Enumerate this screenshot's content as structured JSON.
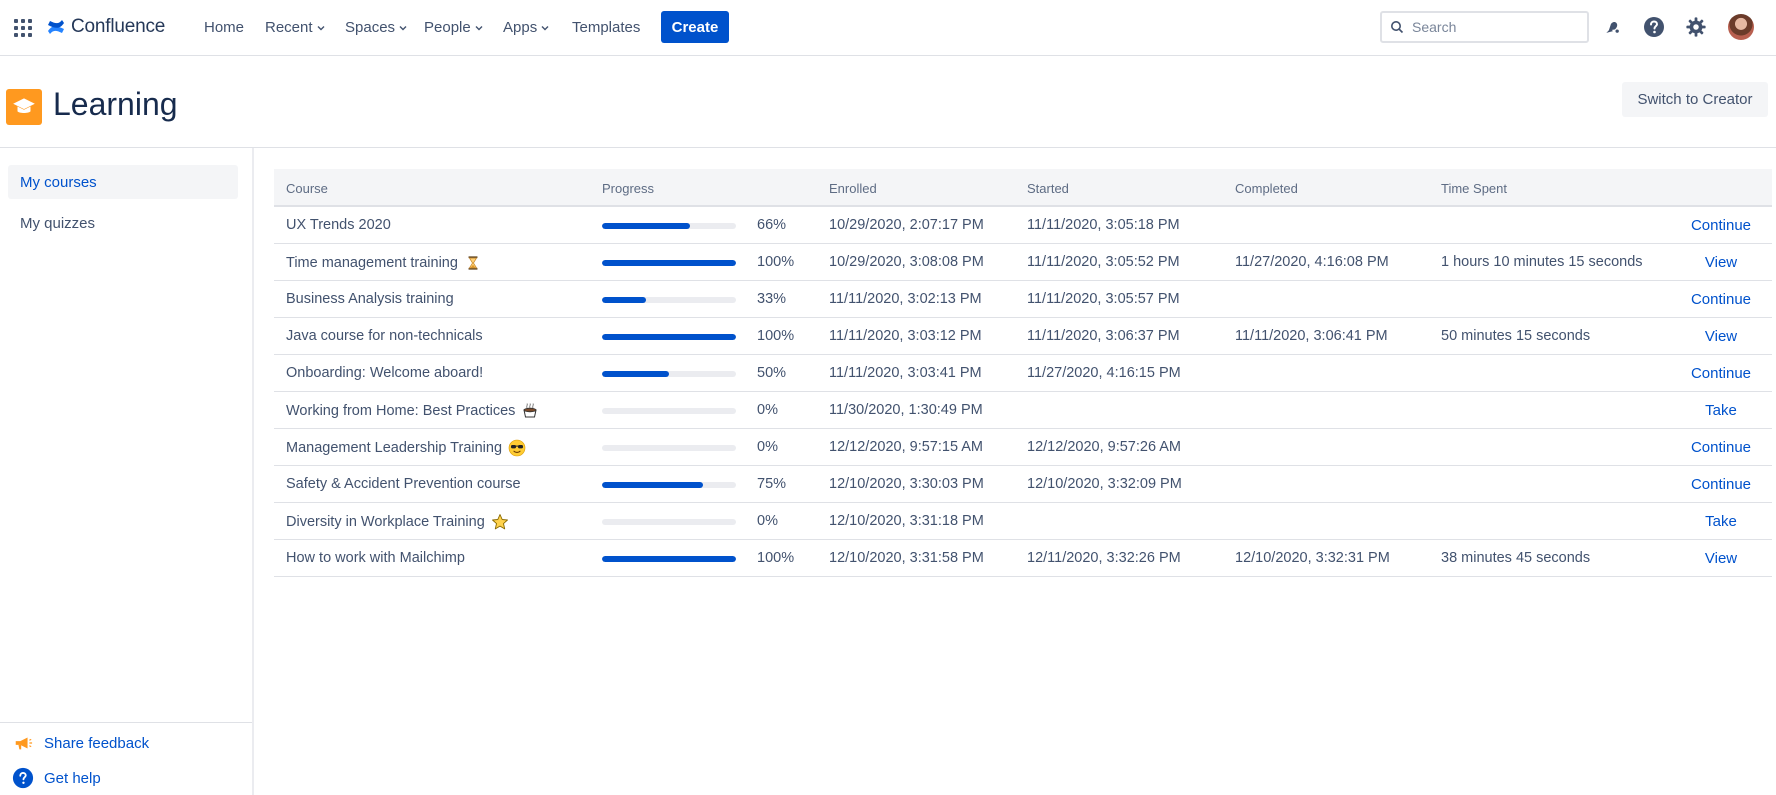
{
  "app": {
    "name": "Confluence"
  },
  "nav": {
    "items": [
      {
        "label": "Home",
        "dropdown": false
      },
      {
        "label": "Recent",
        "dropdown": true
      },
      {
        "label": "Spaces",
        "dropdown": true
      },
      {
        "label": "People",
        "dropdown": true
      },
      {
        "label": "Apps",
        "dropdown": true
      },
      {
        "label": "Templates",
        "dropdown": false
      }
    ],
    "create_label": "Create",
    "search_placeholder": "Search"
  },
  "page": {
    "title": "Learning",
    "switch_label": "Switch to Creator"
  },
  "sidebar": {
    "items": [
      {
        "label": "My courses",
        "active": true
      },
      {
        "label": "My quizzes",
        "active": false
      }
    ],
    "footer": [
      {
        "label": "Share feedback",
        "icon": "megaphone-icon"
      },
      {
        "label": "Get help",
        "icon": "help-circle-icon"
      }
    ]
  },
  "table": {
    "headers": [
      "Course",
      "Progress",
      "Enrolled",
      "Started",
      "Completed",
      "Time Spent"
    ],
    "rows": [
      {
        "course": "UX Trends 2020",
        "emoji": "",
        "progress": 0.66,
        "progress_label": "66%",
        "enrolled": "10/29/2020, 2:07:17 PM",
        "started": "11/11/2020, 3:05:18 PM",
        "completed": "",
        "time_spent": "",
        "action": "Continue"
      },
      {
        "course": "Time management training",
        "emoji": "hourglass-icon",
        "progress": 1.0,
        "progress_label": "100%",
        "enrolled": "10/29/2020, 3:08:08 PM",
        "started": "11/11/2020, 3:05:52 PM",
        "completed": "11/27/2020, 4:16:08 PM",
        "time_spent": "1 hours 10 minutes 15 seconds",
        "action": "View"
      },
      {
        "course": "Business Analysis training",
        "emoji": "",
        "progress": 0.33,
        "progress_label": "33%",
        "enrolled": "11/11/2020, 3:02:13 PM",
        "started": "11/11/2020, 3:05:57 PM",
        "completed": "",
        "time_spent": "",
        "action": "Continue"
      },
      {
        "course": "Java course for non-technicals",
        "emoji": "",
        "progress": 1.0,
        "progress_label": "100%",
        "enrolled": "11/11/2020, 3:03:12 PM",
        "started": "11/11/2020, 3:06:37 PM",
        "completed": "11/11/2020, 3:06:41 PM",
        "time_spent": "50 minutes 15 seconds",
        "action": "View"
      },
      {
        "course": "Onboarding: Welcome aboard!",
        "emoji": "",
        "progress": 0.5,
        "progress_label": "50%",
        "enrolled": "11/11/2020, 3:03:41 PM",
        "started": "11/27/2020, 4:16:15 PM",
        "completed": "",
        "time_spent": "",
        "action": "Continue"
      },
      {
        "course": "Working from Home: Best Practices",
        "emoji": "coffee-icon",
        "progress": 0.0,
        "progress_label": "0%",
        "enrolled": "11/30/2020, 1:30:49 PM",
        "started": "",
        "completed": "",
        "time_spent": "",
        "action": "Take"
      },
      {
        "course": "Management Leadership Training",
        "emoji": "sunglasses-face-icon",
        "progress": 0.0,
        "progress_label": "0%",
        "enrolled": "12/12/2020, 9:57:15 AM",
        "started": "12/12/2020, 9:57:26 AM",
        "completed": "",
        "time_spent": "",
        "action": "Continue"
      },
      {
        "course": "Safety & Accident Prevention course",
        "emoji": "",
        "progress": 0.75,
        "progress_label": "75%",
        "enrolled": "12/10/2020, 3:30:03 PM",
        "started": "12/10/2020, 3:32:09 PM",
        "completed": "",
        "time_spent": "",
        "action": "Continue"
      },
      {
        "course": "Diversity in Workplace Training",
        "emoji": "star-icon",
        "progress": 0.0,
        "progress_label": "0%",
        "enrolled": "12/10/2020, 3:31:18 PM",
        "started": "",
        "completed": "",
        "time_spent": "",
        "action": "Take"
      },
      {
        "course": "How to work with Mailchimp",
        "emoji": "",
        "progress": 1.0,
        "progress_label": "100%",
        "enrolled": "12/10/2020, 3:31:58 PM",
        "started": "12/11/2020, 3:32:26 PM",
        "completed": "12/10/2020, 3:32:31 PM",
        "time_spent": "38 minutes 45 seconds",
        "action": "View"
      }
    ]
  },
  "colors": {
    "accent": "#0052cc",
    "text": "#172b4d",
    "muted": "#42526e",
    "space_icon": "#ff991f"
  }
}
